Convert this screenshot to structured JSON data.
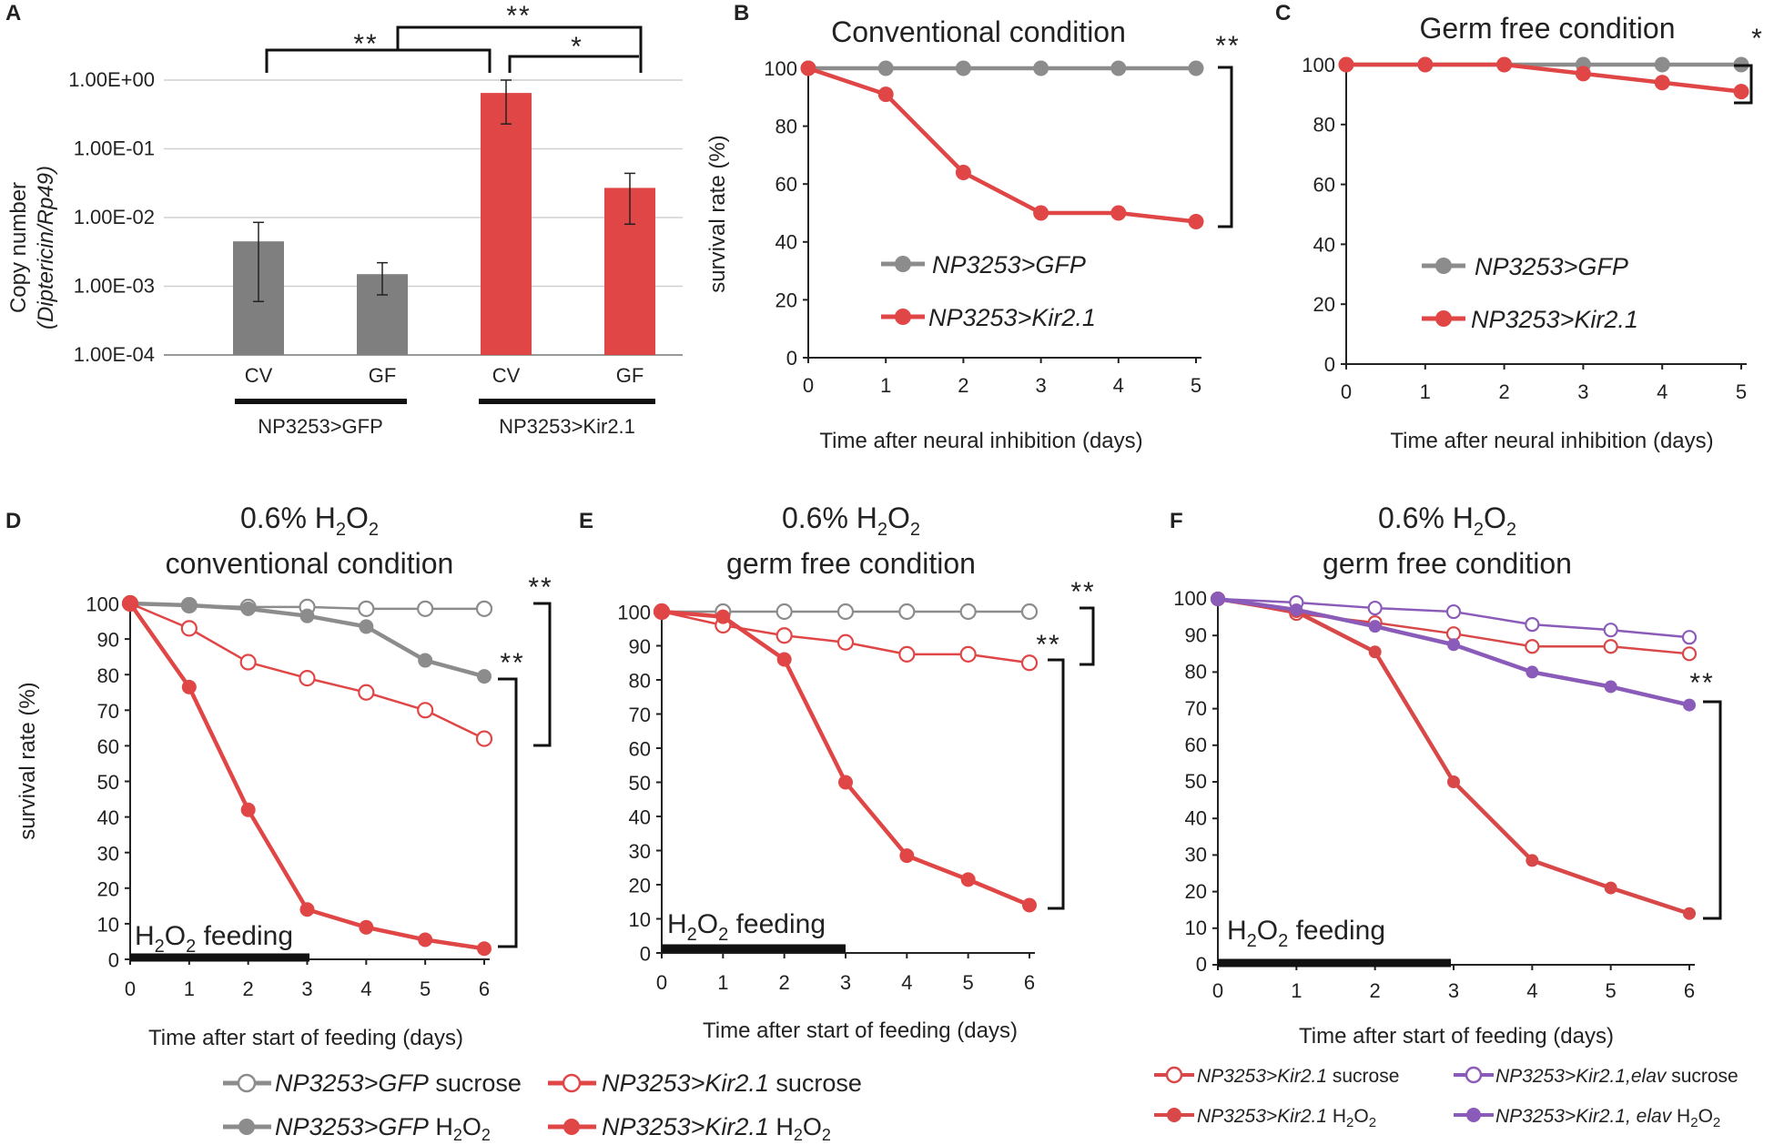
{
  "figure": {
    "domain": "multi-panel figure"
  },
  "chart_data": [
    {
      "id": "A",
      "type": "bar",
      "panel_label": "A",
      "ylabel_line1": "Copy number",
      "ylabel_line2": "(Diptericin/Rp49)",
      "yscale": "log",
      "ylim": [
        0.0001,
        1
      ],
      "yticks": [
        "1.00E+00",
        "1.00E-01",
        "1.00E-02",
        "1.00E-03",
        "1.00E-04"
      ],
      "categories": [
        "CV",
        "GF",
        "CV",
        "GF"
      ],
      "groups": [
        "NP3253>GFP",
        "NP3253>Kir2.1"
      ],
      "values": [
        0.0045,
        0.0015,
        0.65,
        0.027
      ],
      "error_low": [
        0.0006,
        0.00075,
        0.23,
        0.008
      ],
      "error_high": [
        0.0085,
        0.0022,
        1.0,
        0.044
      ],
      "colors": [
        "#7f7f7f",
        "#7f7f7f",
        "#e04646",
        "#e04646"
      ],
      "significance": [
        {
          "between": [
            "GFP CV",
            "Kir2.1 CV"
          ],
          "label": "**"
        },
        {
          "between": [
            "GFP",
            "Kir2.1 GF"
          ],
          "label": "**"
        },
        {
          "between": [
            "Kir2.1 CV",
            "Kir2.1 GF"
          ],
          "label": "*"
        }
      ]
    },
    {
      "id": "B",
      "type": "line",
      "panel_label": "B",
      "title": "Conventional condition",
      "xlabel": "Time after neural inhibition (days)",
      "ylabel": "survival rate (%)",
      "x": [
        0,
        1,
        2,
        3,
        4,
        5
      ],
      "ylim": [
        0,
        100
      ],
      "yticks": [
        0,
        20,
        40,
        60,
        80,
        100
      ],
      "series": [
        {
          "name": "NP3253>GFP",
          "values": [
            100,
            100,
            100,
            100,
            100,
            100
          ],
          "color": "#8c8c8c",
          "filled": true
        },
        {
          "name": "NP3253>Kir2.1",
          "values": [
            100,
            91,
            64,
            50,
            50,
            47
          ],
          "color": "#e04646",
          "filled": true
        }
      ],
      "significance": "**"
    },
    {
      "id": "C",
      "type": "line",
      "panel_label": "C",
      "title": "Germ free condition",
      "xlabel": "Time after neural inhibition (days)",
      "ylabel": "",
      "x": [
        0,
        1,
        2,
        3,
        4,
        5
      ],
      "ylim": [
        0,
        100
      ],
      "yticks": [
        0,
        20,
        40,
        60,
        80,
        100
      ],
      "series": [
        {
          "name": "NP3253>GFP",
          "values": [
            100,
            100,
            100,
            100,
            100,
            100
          ],
          "color": "#8c8c8c",
          "filled": true
        },
        {
          "name": "NP3253>Kir2.1",
          "values": [
            100,
            100,
            100,
            97,
            94,
            91
          ],
          "color": "#e04646",
          "filled": true
        }
      ],
      "significance": "*"
    },
    {
      "id": "D",
      "type": "line",
      "panel_label": "D",
      "title_line1": "0.6% H",
      "title_line2": "conventional condition",
      "xlabel": "Time after start of feeding (days)",
      "ylabel": "survival rate (%)",
      "feeding_label": "H",
      "x": [
        0,
        1,
        2,
        3,
        4,
        5,
        6
      ],
      "ylim": [
        0,
        100
      ],
      "yticks": [
        0,
        10,
        20,
        30,
        40,
        50,
        60,
        70,
        80,
        90,
        100
      ],
      "series": [
        {
          "name": "NP3253>GFP sucrose",
          "values": [
            100,
            99.5,
            99,
            99,
            98.5,
            98.5,
            98.5
          ],
          "color": "#8c8c8c",
          "filled": false
        },
        {
          "name": "NP3253>GFP H2O2",
          "values": [
            100,
            99.5,
            98.5,
            96.5,
            93.5,
            84,
            79.5
          ],
          "color": "#8c8c8c",
          "filled": true
        },
        {
          "name": "NP3253>Kir2.1 sucrose",
          "values": [
            100,
            93,
            83.5,
            79,
            75,
            70,
            62
          ],
          "color": "#e04646",
          "filled": false
        },
        {
          "name": "NP3253>Kir2.1 H2O2",
          "values": [
            100,
            76.5,
            42,
            14,
            9,
            5.5,
            3
          ],
          "color": "#e04646",
          "filled": true
        }
      ],
      "significance": [
        "**",
        "**"
      ]
    },
    {
      "id": "E",
      "type": "line",
      "panel_label": "E",
      "title_line1": "0.6% H",
      "title_line2": "germ free condition",
      "xlabel": "Time after start of feeding (days)",
      "ylabel": "",
      "feeding_label": "H",
      "x": [
        0,
        1,
        2,
        3,
        4,
        5,
        6
      ],
      "ylim": [
        0,
        100
      ],
      "yticks": [
        0,
        10,
        20,
        30,
        40,
        50,
        60,
        70,
        80,
        90,
        100
      ],
      "series": [
        {
          "name": "NP3253>GFP sucrose",
          "values": [
            100,
            100,
            100,
            100,
            100,
            100,
            100
          ],
          "color": "#8c8c8c",
          "filled": false
        },
        {
          "name": "NP3253>Kir2.1 sucrose",
          "values": [
            100,
            96,
            93,
            91,
            87.5,
            87.5,
            85
          ],
          "color": "#e04646",
          "filled": false
        },
        {
          "name": "NP3253>Kir2.1 H2O2",
          "values": [
            100,
            98.5,
            86,
            50,
            28.5,
            21.5,
            14
          ],
          "color": "#e04646",
          "filled": true
        }
      ],
      "significance": [
        "**",
        "**"
      ]
    },
    {
      "id": "F",
      "type": "line",
      "panel_label": "F",
      "title_line1": "0.6% H",
      "title_line2": "germ free condition",
      "xlabel": "Time after start of feeding (days)",
      "ylabel": "",
      "feeding_label": "H",
      "x": [
        0,
        1,
        2,
        3,
        4,
        5,
        6
      ],
      "ylim": [
        0,
        100
      ],
      "yticks": [
        0,
        10,
        20,
        30,
        40,
        50,
        60,
        70,
        80,
        90,
        100
      ],
      "series": [
        {
          "name": "NP3253>Kir2.1 sucrose",
          "values": [
            100,
            96,
            93.5,
            90.5,
            87,
            87,
            85
          ],
          "color": "#d84848",
          "filled": false
        },
        {
          "name": "NP3253>Kir2.1,elav sucrose",
          "values": [
            100,
            99,
            97.5,
            96.5,
            93,
            91.5,
            89.5
          ],
          "color": "#8a5bb8",
          "filled": false
        },
        {
          "name": "NP3253>Kir2.1 H2O2",
          "values": [
            100,
            96.5,
            85.5,
            50,
            28.5,
            21,
            14
          ],
          "color": "#d84848",
          "filled": true
        },
        {
          "name": "NP3253>Kir2.1, elav H2O2",
          "values": [
            100,
            97,
            92.5,
            87.5,
            80,
            76,
            71
          ],
          "color": "#8a5bb8",
          "filled": true
        }
      ],
      "significance": [
        "**"
      ]
    }
  ],
  "legend_de": {
    "gfp_suc_italic": "NP3253>GFP",
    "gfp_suc_plain": " sucrose",
    "kir_suc_italic": "NP3253>Kir2.1",
    "kir_suc_plain": " sucrose",
    "gfp_h_italic": "NP3253>GFP",
    "gfp_h_plain": " H",
    "kir_h_italic": "NP3253>Kir2.1",
    "kir_h_plain": " H"
  },
  "legend_f": {
    "kir_suc_italic": "NP3253>Kir2.1",
    "kir_suc_plain": " sucrose",
    "elav_suc_italic": "NP3253>Kir2.1,elav",
    "elav_suc_plain": " sucrose",
    "kir_h_italic": "NP3253>Kir2.1",
    "kir_h_plain": " H",
    "elav_h_italic": "NP3253>Kir2.1, elav",
    "elav_h_plain": " H"
  },
  "formula": {
    "sub2": "2",
    "o": "O",
    "feeding_word": " feeding"
  },
  "colors": {
    "grey": "#8c8c8c",
    "red": "#e04646",
    "purple": "#8a5bb8",
    "bar_grey": "#7f7f7f"
  }
}
